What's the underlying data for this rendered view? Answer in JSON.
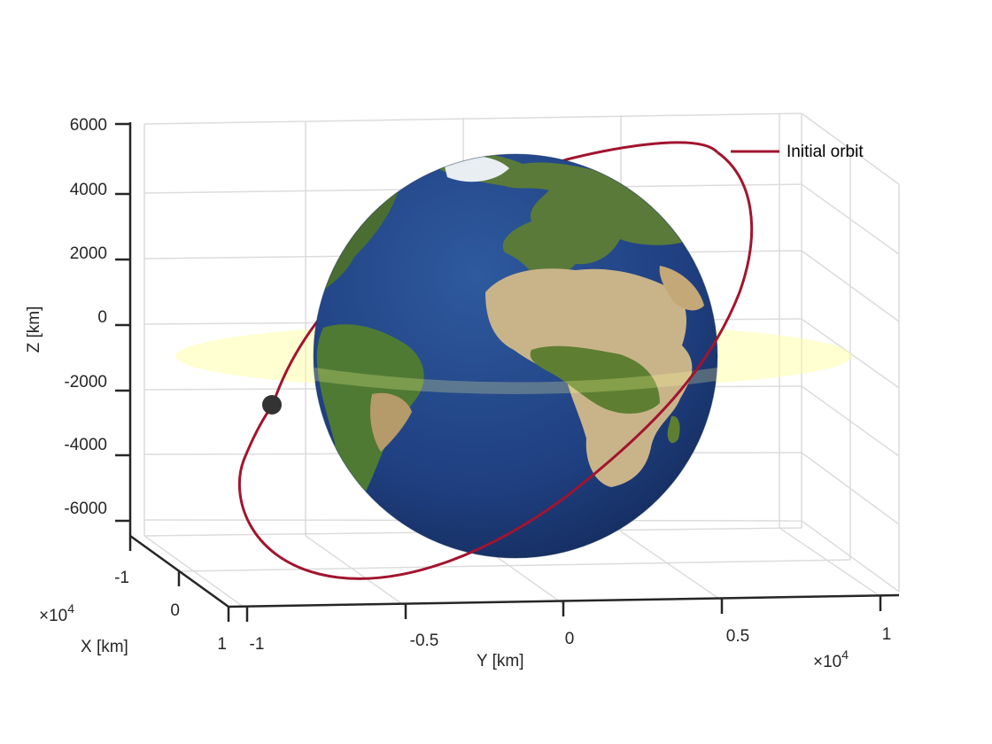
{
  "chart_data": {
    "type": "scatter",
    "view": "3d",
    "grid": true,
    "legend_position": "top-right",
    "legend": [
      "Initial orbit"
    ],
    "series": [
      {
        "name": "Initial orbit",
        "color": "#A2142F",
        "style": "line"
      }
    ],
    "satellite": {
      "color": "#333333",
      "x": -3500,
      "y": -9300,
      "z": -2800
    },
    "earth": {
      "radius_km": 6378,
      "texture": "earth-texture",
      "ocean_color": "#1E3C78"
    },
    "equatorial_plane": {
      "color": "#FFFF99",
      "z": -1200
    },
    "xlabel": "X [km]",
    "ylabel": "Y [km]",
    "zlabel": "Z [km]",
    "x_ticks": [
      "-1",
      "0",
      "1"
    ],
    "x_exponent_base": "×10",
    "x_exponent_power": "4",
    "y_ticks": [
      "-1",
      "-0.5",
      "0",
      "0.5",
      "1"
    ],
    "y_exponent_base": "×10",
    "y_exponent_power": "4",
    "z_ticks": [
      "6000",
      "4000",
      "2000",
      "0",
      "-2000",
      "-4000",
      "-6000"
    ],
    "xlim": [
      -10000,
      10000
    ],
    "ylim": [
      -10000,
      10000
    ],
    "zlim": [
      -7000,
      6000
    ]
  }
}
